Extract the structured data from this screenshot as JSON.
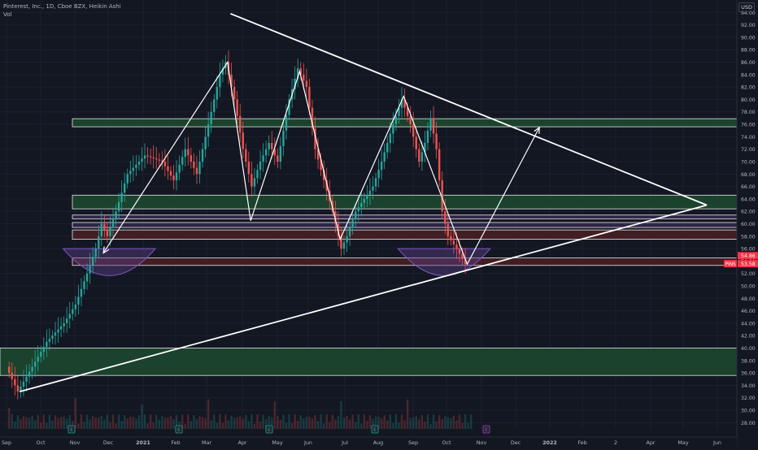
{
  "legend": {
    "title": "Pinterest, Inc., 1D, Cboe BZX, Heikin Ashi",
    "sub": "Vol"
  },
  "currency": "USD",
  "colors": {
    "background": "#131722",
    "up": "#26a69a",
    "down": "#ef5350",
    "drawing": "#ffffff",
    "zone_green": "#1d4a2e",
    "zone_red": "#4a1f24",
    "zone_purple": "#36284e",
    "price_label": "#f23645"
  },
  "chart_data": {
    "type": "candlestick",
    "style": "Heikin Ashi",
    "title": "Pinterest, Inc., 1D, Cboe BZX, Heikin Ashi",
    "ylim": [
      27,
      96
    ],
    "y_ticks": [
      "28.00",
      "30.00",
      "32.00",
      "34.00",
      "36.00",
      "38.00",
      "40.00",
      "42.00",
      "44.00",
      "46.00",
      "48.00",
      "50.00",
      "52.00",
      "54.00",
      "56.00",
      "58.00",
      "60.00",
      "62.00",
      "64.00",
      "66.00",
      "68.00",
      "70.00",
      "72.00",
      "74.00",
      "76.00",
      "78.00",
      "80.00",
      "82.00",
      "84.00",
      "86.00",
      "88.00",
      "90.00",
      "92.00",
      "94.00"
    ],
    "x_ticks": [
      "Sep",
      "Oct",
      "Nov",
      "Dec",
      "2021",
      "Feb",
      "Mar",
      "Apr",
      "May",
      "Jun",
      "Jul",
      "Aug",
      "Sep",
      "Oct",
      "Nov",
      "Dec",
      "2022",
      "Feb",
      "2",
      "Apr",
      "May",
      "Jun"
    ],
    "price_points": [
      {
        "t": 0,
        "p": 37
      },
      {
        "t": 4,
        "p": 33
      },
      {
        "t": 9,
        "p": 37
      },
      {
        "t": 14,
        "p": 41
      },
      {
        "t": 20,
        "p": 44
      },
      {
        "t": 24,
        "p": 47
      },
      {
        "t": 28,
        "p": 52
      },
      {
        "t": 31,
        "p": 56
      },
      {
        "t": 33,
        "p": 60
      },
      {
        "t": 35,
        "p": 58
      },
      {
        "t": 38,
        "p": 62
      },
      {
        "t": 42,
        "p": 68
      },
      {
        "t": 48,
        "p": 71
      },
      {
        "t": 54,
        "p": 70
      },
      {
        "t": 58,
        "p": 67
      },
      {
        "t": 62,
        "p": 72
      },
      {
        "t": 66,
        "p": 68
      },
      {
        "t": 70,
        "p": 76
      },
      {
        "t": 74,
        "p": 84
      },
      {
        "t": 76,
        "p": 86
      },
      {
        "t": 79,
        "p": 80
      },
      {
        "t": 82,
        "p": 72
      },
      {
        "t": 85,
        "p": 66
      },
      {
        "t": 88,
        "p": 70
      },
      {
        "t": 91,
        "p": 73
      },
      {
        "t": 94,
        "p": 70
      },
      {
        "t": 98,
        "p": 80
      },
      {
        "t": 101,
        "p": 85
      },
      {
        "t": 104,
        "p": 82
      },
      {
        "t": 107,
        "p": 72
      },
      {
        "t": 110,
        "p": 67
      },
      {
        "t": 113,
        "p": 62
      },
      {
        "t": 116,
        "p": 56
      },
      {
        "t": 118,
        "p": 58
      },
      {
        "t": 121,
        "p": 62
      },
      {
        "t": 124,
        "p": 64
      },
      {
        "t": 127,
        "p": 66
      },
      {
        "t": 130,
        "p": 70
      },
      {
        "t": 134,
        "p": 76
      },
      {
        "t": 137,
        "p": 80
      },
      {
        "t": 140,
        "p": 76
      },
      {
        "t": 143,
        "p": 70
      },
      {
        "t": 145,
        "p": 73
      },
      {
        "t": 147,
        "p": 77
      },
      {
        "t": 149,
        "p": 72
      },
      {
        "t": 151,
        "p": 62
      },
      {
        "t": 153,
        "p": 58
      },
      {
        "t": 156,
        "p": 56
      },
      {
        "t": 159,
        "p": 53.5
      }
    ],
    "horizontal_zones": [
      {
        "from": 75.6,
        "to": 76.9,
        "color": "green"
      },
      {
        "from": 62.4,
        "to": 64.6,
        "color": "green"
      },
      {
        "from": 60.8,
        "to": 61.4,
        "color": "purple"
      },
      {
        "from": 59.4,
        "to": 60.2,
        "color": "purple"
      },
      {
        "from": 57.5,
        "to": 59.0,
        "color": "red"
      },
      {
        "from": 53.3,
        "to": 54.5,
        "color": "red"
      },
      {
        "from": 35.6,
        "to": 40.0,
        "color": "green"
      }
    ],
    "drawings": {
      "trendlines": [
        {
          "from": {
            "t": 4,
            "p": 33
          },
          "to": {
            "t": 242,
            "p": 63
          }
        },
        {
          "from": {
            "t": 77,
            "p": 93.8
          },
          "to": {
            "t": 242,
            "p": 63
          }
        }
      ],
      "zigzag": [
        {
          "t": 33,
          "p": 55.3
        },
        {
          "t": 76,
          "p": 86
        },
        {
          "t": 84,
          "p": 60.5
        },
        {
          "t": 101,
          "p": 84.5
        },
        {
          "t": 115,
          "p": 57.5
        },
        {
          "t": 137,
          "p": 80.5
        },
        {
          "t": 159,
          "p": 53.5
        },
        {
          "t": 184,
          "p": 75.5
        }
      ],
      "arcs": [
        {
          "t_center": 35,
          "p_top": 56,
          "p_bottom": 52,
          "t_halfwidth": 16
        },
        {
          "t_center": 151,
          "p_top": 56,
          "p_bottom": 52,
          "t_halfwidth": 16
        }
      ]
    },
    "price_labels": [
      {
        "p": 54.86,
        "text": "54.86"
      },
      {
        "p": 53.58,
        "text": "53.58",
        "tag": "PINS"
      }
    ],
    "earnings_markers": [
      "E",
      "E",
      "E",
      "E"
    ]
  }
}
